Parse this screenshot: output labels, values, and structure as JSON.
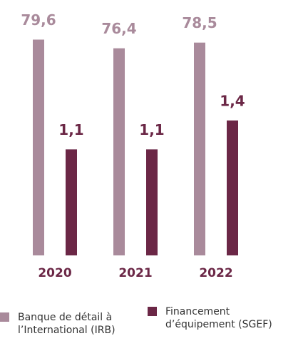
{
  "chart_data": {
    "type": "bar",
    "categories": [
      "2020",
      "2021",
      "2022"
    ],
    "series": [
      {
        "name": "Banque de détail à l’International (IRB)",
        "color": "#a98a9b",
        "values": [
          79.6,
          76.4,
          78.5
        ],
        "value_labels": [
          "79,6",
          "76,4",
          "78,5"
        ]
      },
      {
        "name": "Financement d’équipement (SGEF)",
        "color": "#6b2746",
        "values": [
          1.1,
          1.1,
          1.4
        ],
        "value_labels": [
          "1,1",
          "1,1",
          "1,4"
        ],
        "axis": "y2"
      }
    ],
    "ylim": [
      0,
      80
    ],
    "y2lim": [
      0,
      2.25
    ]
  }
}
